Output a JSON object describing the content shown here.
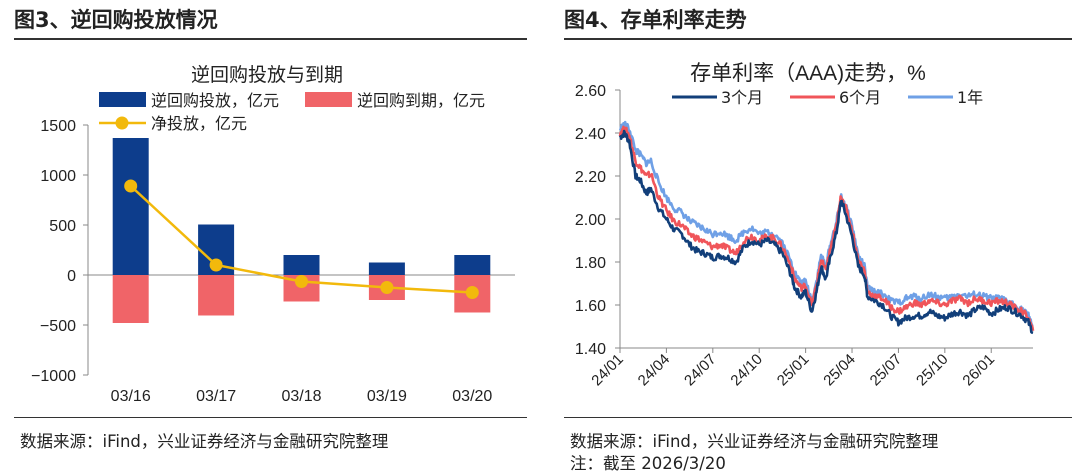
{
  "figure3": {
    "heading": "图3、逆回购投放情况",
    "source": "数据来源：iFind，兴业证券经济与金融研究院整理",
    "chart_data": {
      "type": "bar",
      "title": "逆回购投放与到期",
      "categories": [
        "03/16",
        "03/17",
        "03/18",
        "03/19",
        "03/20"
      ],
      "series": [
        {
          "name": "逆回购投放，亿元",
          "kind": "bar",
          "color": "#0d3d8c",
          "values": [
            1370,
            505,
            200,
            125,
            200
          ]
        },
        {
          "name": "逆回购到期，亿元",
          "kind": "bar",
          "color": "#f06468",
          "values": [
            -480,
            -405,
            -265,
            -250,
            -375
          ]
        },
        {
          "name": "净投放，亿元",
          "kind": "line",
          "color": "#f2b90c",
          "values": [
            890,
            100,
            -65,
            -125,
            -175
          ]
        }
      ],
      "ylim": [
        -1000,
        1500
      ],
      "yticks": [
        -1000,
        -500,
        0,
        500,
        1000,
        1500
      ],
      "ytick_labels": [
        "−1000",
        "−500",
        "0",
        "500",
        "1000",
        "1500"
      ],
      "xlabel": "",
      "ylabel": "",
      "grid": false,
      "legend": "top"
    }
  },
  "figure4": {
    "heading": "图4、存单利率走势",
    "source": "数据来源：iFind，兴业证券经济与金融研究院整理",
    "note": "注：截至 2026/3/20",
    "chart_data": {
      "type": "line",
      "title": "存单利率（AAA)走势，%",
      "title_parts": [
        "存单利率（",
        "AAA)走势，%"
      ],
      "x_tick_labels": [
        "24/01",
        "24/04",
        "24/07",
        "24/10",
        "25/01",
        "25/04",
        "25/07",
        "25/10",
        "26/01"
      ],
      "x_tick_positions": [
        0,
        3,
        6,
        9,
        12,
        15,
        18,
        21,
        24
      ],
      "x_range": [
        0,
        26.7
      ],
      "ylim": [
        1.4,
        2.6
      ],
      "yticks": [
        1.4,
        1.6,
        1.8,
        2.0,
        2.2,
        2.4,
        2.6
      ],
      "ytick_labels": [
        "1.40",
        "1.60",
        "1.80",
        "2.00",
        "2.20",
        "2.40",
        "2.60"
      ],
      "legend": "top",
      "series": [
        {
          "name": "3个月",
          "color": "#123f7a",
          "points": [
            [
              0,
              2.38
            ],
            [
              0.3,
              2.4
            ],
            [
              0.6,
              2.36
            ],
            [
              1.0,
              2.2
            ],
            [
              1.3,
              2.18
            ],
            [
              1.7,
              2.12
            ],
            [
              2.0,
              2.14
            ],
            [
              2.5,
              2.05
            ],
            [
              3.0,
              2.0
            ],
            [
              3.5,
              1.95
            ],
            [
              4.0,
              1.93
            ],
            [
              4.5,
              1.88
            ],
            [
              5.0,
              1.85
            ],
            [
              5.5,
              1.84
            ],
            [
              6.0,
              1.82
            ],
            [
              6.5,
              1.83
            ],
            [
              7.0,
              1.82
            ],
            [
              7.5,
              1.8
            ],
            [
              8.0,
              1.87
            ],
            [
              8.5,
              1.9
            ],
            [
              9.0,
              1.88
            ],
            [
              9.5,
              1.9
            ],
            [
              10.0,
              1.88
            ],
            [
              10.5,
              1.84
            ],
            [
              11.0,
              1.75
            ],
            [
              11.3,
              1.68
            ],
            [
              11.7,
              1.64
            ],
            [
              12.0,
              1.66
            ],
            [
              12.4,
              1.57
            ],
            [
              12.7,
              1.66
            ],
            [
              13.0,
              1.78
            ],
            [
              13.3,
              1.72
            ],
            [
              13.6,
              1.82
            ],
            [
              14.0,
              1.94
            ],
            [
              14.3,
              2.09
            ],
            [
              14.6,
              2.02
            ],
            [
              15.0,
              1.92
            ],
            [
              15.4,
              1.78
            ],
            [
              15.8,
              1.74
            ],
            [
              16.0,
              1.64
            ],
            [
              16.5,
              1.62
            ],
            [
              17.0,
              1.6
            ],
            [
              17.5,
              1.55
            ],
            [
              18.0,
              1.52
            ],
            [
              18.5,
              1.54
            ],
            [
              19.0,
              1.55
            ],
            [
              19.5,
              1.55
            ],
            [
              20.0,
              1.57
            ],
            [
              20.5,
              1.55
            ],
            [
              21.0,
              1.54
            ],
            [
              21.5,
              1.56
            ],
            [
              22.0,
              1.57
            ],
            [
              22.5,
              1.55
            ],
            [
              23.0,
              1.58
            ],
            [
              23.5,
              1.59
            ],
            [
              24.0,
              1.56
            ],
            [
              24.5,
              1.58
            ],
            [
              25.0,
              1.59
            ],
            [
              25.5,
              1.57
            ],
            [
              26.0,
              1.55
            ],
            [
              26.4,
              1.52
            ],
            [
              26.7,
              1.47
            ]
          ]
        },
        {
          "name": "6个月",
          "color": "#f0555a",
          "points": [
            [
              0,
              2.4
            ],
            [
              0.3,
              2.42
            ],
            [
              0.6,
              2.39
            ],
            [
              1.0,
              2.27
            ],
            [
              1.3,
              2.24
            ],
            [
              1.7,
              2.2
            ],
            [
              2.0,
              2.21
            ],
            [
              2.5,
              2.1
            ],
            [
              3.0,
              2.04
            ],
            [
              3.5,
              1.99
            ],
            [
              4.0,
              1.97
            ],
            [
              4.5,
              1.93
            ],
            [
              5.0,
              1.91
            ],
            [
              5.5,
              1.89
            ],
            [
              6.0,
              1.87
            ],
            [
              6.5,
              1.88
            ],
            [
              7.0,
              1.86
            ],
            [
              7.5,
              1.84
            ],
            [
              8.0,
              1.9
            ],
            [
              8.5,
              1.92
            ],
            [
              9.0,
              1.9
            ],
            [
              9.5,
              1.92
            ],
            [
              10.0,
              1.91
            ],
            [
              10.5,
              1.87
            ],
            [
              11.0,
              1.79
            ],
            [
              11.3,
              1.72
            ],
            [
              11.7,
              1.68
            ],
            [
              12.0,
              1.69
            ],
            [
              12.4,
              1.6
            ],
            [
              12.7,
              1.69
            ],
            [
              13.0,
              1.81
            ],
            [
              13.3,
              1.76
            ],
            [
              13.6,
              1.86
            ],
            [
              14.0,
              1.97
            ],
            [
              14.3,
              2.11
            ],
            [
              14.6,
              2.05
            ],
            [
              15.0,
              1.95
            ],
            [
              15.4,
              1.81
            ],
            [
              15.8,
              1.76
            ],
            [
              16.0,
              1.66
            ],
            [
              16.5,
              1.64
            ],
            [
              17.0,
              1.63
            ],
            [
              17.5,
              1.59
            ],
            [
              18.0,
              1.57
            ],
            [
              18.5,
              1.59
            ],
            [
              19.0,
              1.61
            ],
            [
              19.5,
              1.6
            ],
            [
              20.0,
              1.62
            ],
            [
              20.5,
              1.61
            ],
            [
              21.0,
              1.6
            ],
            [
              21.5,
              1.62
            ],
            [
              22.0,
              1.63
            ],
            [
              22.5,
              1.61
            ],
            [
              23.0,
              1.63
            ],
            [
              23.5,
              1.62
            ],
            [
              24.0,
              1.61
            ],
            [
              24.5,
              1.62
            ],
            [
              25.0,
              1.61
            ],
            [
              25.5,
              1.59
            ],
            [
              26.0,
              1.57
            ],
            [
              26.4,
              1.54
            ],
            [
              26.7,
              1.48
            ]
          ]
        },
        {
          "name": "1年",
          "color": "#6fa0e6",
          "points": [
            [
              0,
              2.42
            ],
            [
              0.3,
              2.44
            ],
            [
              0.6,
              2.42
            ],
            [
              1.0,
              2.32
            ],
            [
              1.3,
              2.3
            ],
            [
              1.7,
              2.26
            ],
            [
              2.0,
              2.27
            ],
            [
              2.5,
              2.17
            ],
            [
              3.0,
              2.1
            ],
            [
              3.5,
              2.05
            ],
            [
              4.0,
              2.03
            ],
            [
              4.5,
              1.99
            ],
            [
              5.0,
              1.97
            ],
            [
              5.5,
              1.95
            ],
            [
              6.0,
              1.93
            ],
            [
              6.5,
              1.94
            ],
            [
              7.0,
              1.92
            ],
            [
              7.5,
              1.9
            ],
            [
              8.0,
              1.94
            ],
            [
              8.5,
              1.96
            ],
            [
              9.0,
              1.93
            ],
            [
              9.5,
              1.94
            ],
            [
              10.0,
              1.93
            ],
            [
              10.5,
              1.89
            ],
            [
              11.0,
              1.81
            ],
            [
              11.3,
              1.75
            ],
            [
              11.7,
              1.7
            ],
            [
              12.0,
              1.71
            ],
            [
              12.4,
              1.62
            ],
            [
              12.7,
              1.71
            ],
            [
              13.0,
              1.83
            ],
            [
              13.3,
              1.78
            ],
            [
              13.6,
              1.88
            ],
            [
              14.0,
              1.99
            ],
            [
              14.3,
              2.1
            ],
            [
              14.6,
              2.06
            ],
            [
              15.0,
              1.97
            ],
            [
              15.4,
              1.83
            ],
            [
              15.8,
              1.78
            ],
            [
              16.0,
              1.68
            ],
            [
              16.5,
              1.66
            ],
            [
              17.0,
              1.65
            ],
            [
              17.5,
              1.62
            ],
            [
              18.0,
              1.61
            ],
            [
              18.5,
              1.63
            ],
            [
              19.0,
              1.64
            ],
            [
              19.5,
              1.63
            ],
            [
              20.0,
              1.65
            ],
            [
              20.5,
              1.64
            ],
            [
              21.0,
              1.63
            ],
            [
              21.5,
              1.64
            ],
            [
              22.0,
              1.65
            ],
            [
              22.5,
              1.64
            ],
            [
              23.0,
              1.65
            ],
            [
              23.5,
              1.64
            ],
            [
              24.0,
              1.63
            ],
            [
              24.5,
              1.63
            ],
            [
              25.0,
              1.62
            ],
            [
              25.5,
              1.6
            ],
            [
              26.0,
              1.58
            ],
            [
              26.4,
              1.55
            ],
            [
              26.7,
              1.5
            ]
          ]
        }
      ]
    }
  }
}
